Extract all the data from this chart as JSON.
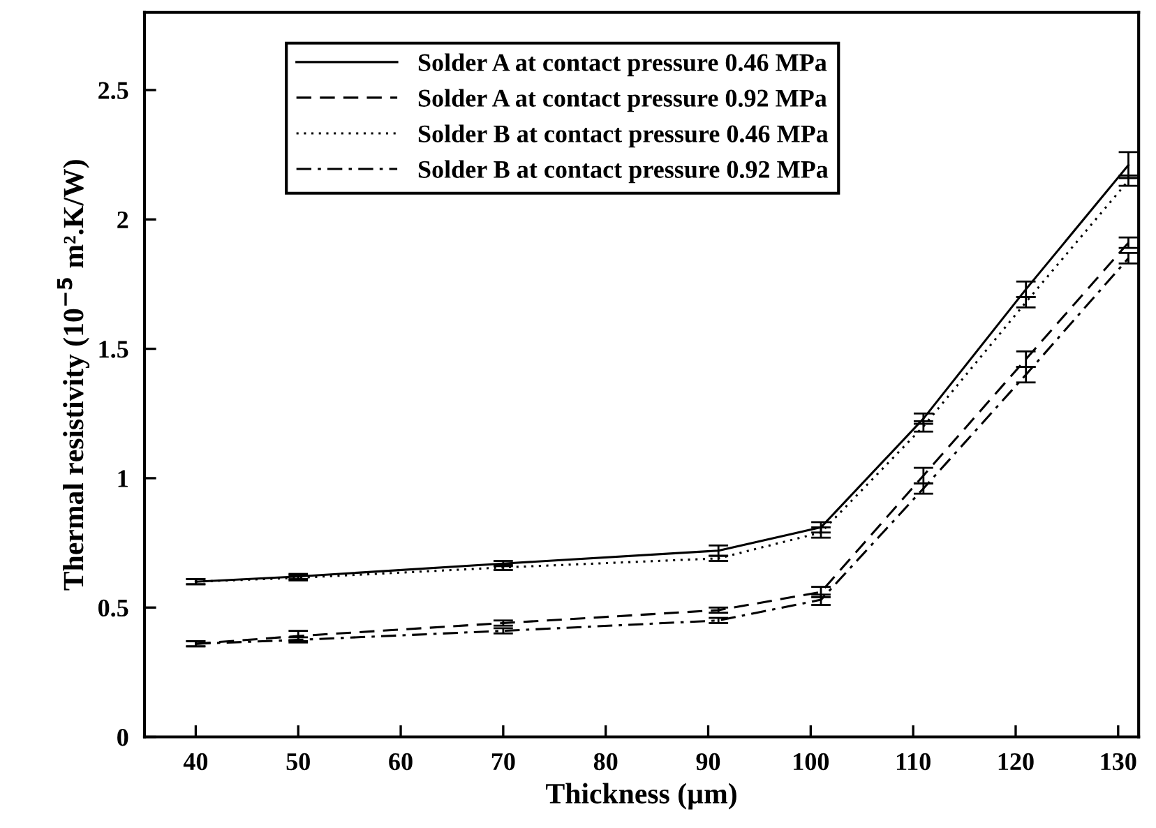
{
  "chart_data": {
    "type": "line",
    "xlabel": "Thickness (µm)",
    "ylabel": "Thermal resistivity (10$^{−5}$ m².K/W)",
    "x": [
      40,
      50,
      70,
      91,
      101,
      111,
      121,
      131
    ],
    "series": [
      {
        "name": "Solder A at contact pressure 0.46 MPa",
        "color": "#000000",
        "line_style": "solid",
        "values": [
          0.6,
          0.62,
          0.67,
          0.72,
          0.81,
          1.23,
          1.73,
          2.21
        ],
        "errors": [
          0.01,
          0.01,
          0.01,
          0.02,
          0.02,
          0.02,
          0.03,
          0.05
        ]
      },
      {
        "name": "Solder A at contact pressure 0.92 MPa",
        "color": "#000000",
        "line_style": "dashed",
        "values": [
          0.36,
          0.39,
          0.44,
          0.49,
          0.56,
          1.01,
          1.46,
          1.91
        ],
        "errors": [
          0.01,
          0.02,
          0.01,
          0.01,
          0.02,
          0.03,
          0.03,
          0.02
        ]
      },
      {
        "name": "Solder B at contact pressure 0.46 MPa",
        "color": "#000000",
        "line_style": "dotted",
        "values": [
          0.6,
          0.615,
          0.655,
          0.69,
          0.79,
          1.2,
          1.68,
          2.15
        ],
        "errors": [
          0.01,
          0.01,
          0.01,
          0.01,
          0.02,
          0.02,
          0.02,
          0.02
        ]
      },
      {
        "name": "Solder B at contact pressure 0.92 MPa",
        "color": "#000000",
        "line_style": "dashdot",
        "values": [
          0.36,
          0.375,
          0.41,
          0.45,
          0.53,
          0.96,
          1.4,
          1.85
        ],
        "errors": [
          0.01,
          0.01,
          0.01,
          0.01,
          0.02,
          0.02,
          0.03,
          0.02
        ]
      }
    ],
    "xlim": [
      35,
      132
    ],
    "ylim": [
      0,
      2.8
    ],
    "xticks": [
      40,
      50,
      60,
      70,
      80,
      90,
      100,
      110,
      120,
      130
    ],
    "yticks": [
      0,
      0.5,
      1,
      1.5,
      2,
      2.5
    ],
    "grid": false,
    "legend": "top left",
    "marker": "none"
  }
}
